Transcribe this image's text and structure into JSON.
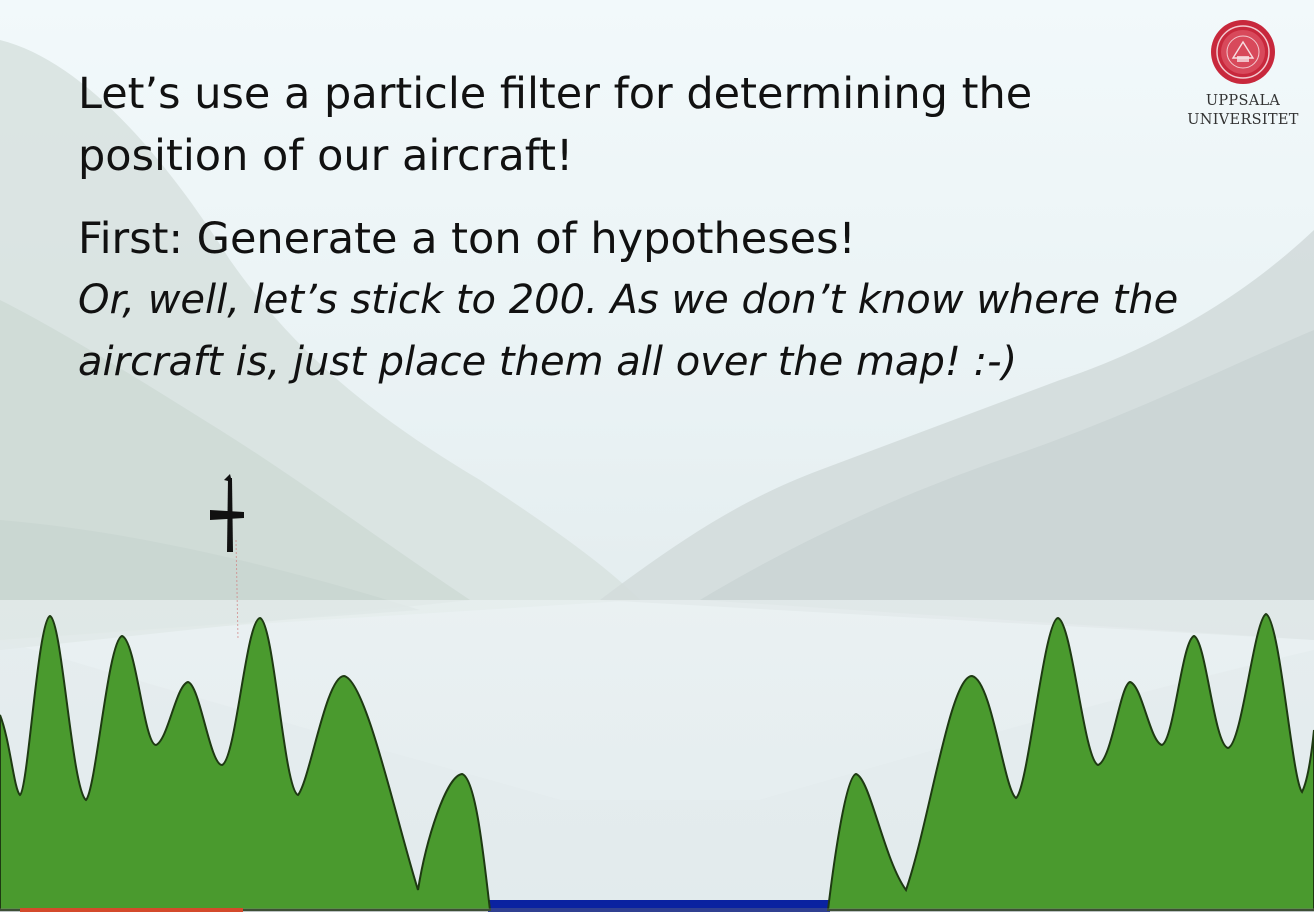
{
  "slide": {
    "title_line1": "Let’s use a particle filter for determining the",
    "title_line2": "position of our aircraft!",
    "first_line": "First: Generate a ton of hypotheses!",
    "italic_line1": "Or, well, let’s stick to 200.  As we don’t know where the",
    "italic_line2": "aircraft is, just place them all over the map! :-)"
  },
  "logo": {
    "line1": "UPPSALA",
    "line2": "UNIVERSITET"
  },
  "colors": {
    "terrain_fill": "#4a9a2e",
    "terrain_outline": "#1e3a12",
    "water": "#0a22a0",
    "seal": "#c8283c",
    "progress": "#d44a2b"
  },
  "video_progress": 0.17
}
